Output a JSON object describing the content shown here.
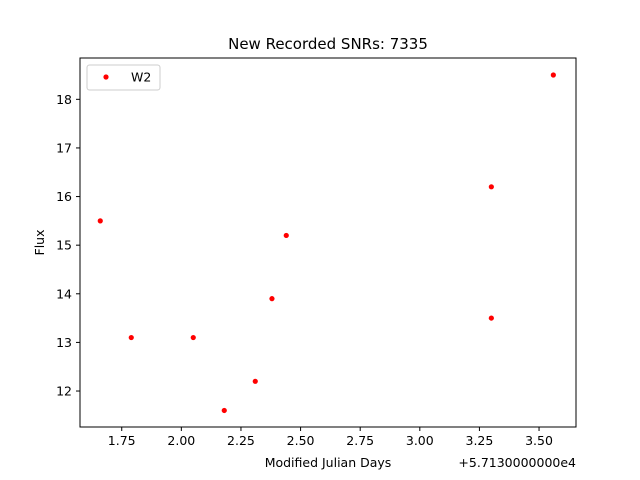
{
  "chart_data": {
    "type": "scatter",
    "title": "New Recorded SNRs: 7335",
    "xlabel": "Modified Julian Days",
    "ylabel": "Flux",
    "x_offset_label": "+5.7130000000e4",
    "xlim": [
      1.575,
      3.655
    ],
    "ylim": [
      11.26,
      18.85
    ],
    "x_ticks": [
      1.75,
      2.0,
      2.25,
      2.5,
      2.75,
      3.0,
      3.25,
      3.5
    ],
    "x_tick_labels": [
      "1.75",
      "2.00",
      "2.25",
      "2.50",
      "2.75",
      "3.00",
      "3.25",
      "3.50"
    ],
    "y_ticks": [
      12,
      13,
      14,
      15,
      16,
      17,
      18
    ],
    "y_tick_labels": [
      "12",
      "13",
      "14",
      "15",
      "16",
      "17",
      "18"
    ],
    "grid": false,
    "legend_placement": "upper-left",
    "series": [
      {
        "name": "W2",
        "color": "#ff0000",
        "marker": "circle",
        "x": [
          1.66,
          1.79,
          2.05,
          2.18,
          2.31,
          2.38,
          2.44,
          3.3,
          3.3,
          3.56
        ],
        "y": [
          15.5,
          13.1,
          13.1,
          11.6,
          12.2,
          13.9,
          15.2,
          16.2,
          13.5,
          18.5
        ]
      }
    ]
  }
}
